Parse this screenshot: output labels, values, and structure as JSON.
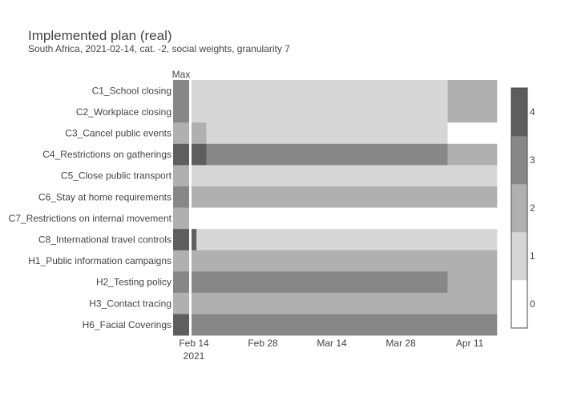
{
  "chart_data": {
    "type": "heatmap",
    "title": "Implemented plan (real)",
    "subtitle": "South Africa, 2021-02-14, cat. -2, social weights, granularity 7",
    "max_column_label": "Max",
    "rows": [
      "C1_School closing",
      "C2_Workplace closing",
      "C3_Cancel public events",
      "C4_Restrictions on gatherings",
      "C5_Close public transport",
      "C6_Stay at home requirements",
      "C7_Restrictions on internal movement",
      "C8_International travel controls",
      "H1_Public information campaigns",
      "H2_Testing policy",
      "H3_Contact tracing",
      "H6_Facial Coverings"
    ],
    "max_values": [
      3,
      3,
      2,
      4,
      2,
      3,
      2,
      4,
      2,
      3,
      2,
      4
    ],
    "x_start": "2021-02-14",
    "x_end": "2021-04-17",
    "x_ticks": [
      {
        "date": "2021-02-14",
        "label": "Feb 14",
        "sublabel": "2021"
      },
      {
        "date": "2021-02-28",
        "label": "Feb 28"
      },
      {
        "date": "2021-03-14",
        "label": "Mar 14"
      },
      {
        "date": "2021-03-28",
        "label": "Mar 28"
      },
      {
        "date": "2021-04-11",
        "label": "Apr 11"
      }
    ],
    "segments": [
      [
        {
          "start": "2021-02-14",
          "end": "2021-04-07",
          "value": 1
        },
        {
          "start": "2021-04-07",
          "end": "2021-04-17",
          "value": 2
        }
      ],
      [
        {
          "start": "2021-02-14",
          "end": "2021-04-07",
          "value": 1
        },
        {
          "start": "2021-04-07",
          "end": "2021-04-17",
          "value": 2
        }
      ],
      [
        {
          "start": "2021-02-14",
          "end": "2021-02-17",
          "value": 2
        },
        {
          "start": "2021-02-17",
          "end": "2021-04-07",
          "value": 1
        },
        {
          "start": "2021-04-07",
          "end": "2021-04-17",
          "value": 0
        }
      ],
      [
        {
          "start": "2021-02-14",
          "end": "2021-02-17",
          "value": 4
        },
        {
          "start": "2021-02-17",
          "end": "2021-04-07",
          "value": 3
        },
        {
          "start": "2021-04-07",
          "end": "2021-04-17",
          "value": 2
        }
      ],
      [
        {
          "start": "2021-02-14",
          "end": "2021-04-17",
          "value": 1
        }
      ],
      [
        {
          "start": "2021-02-14",
          "end": "2021-04-17",
          "value": 2
        }
      ],
      [
        {
          "start": "2021-02-14",
          "end": "2021-04-17",
          "value": 0
        }
      ],
      [
        {
          "start": "2021-02-14",
          "end": "2021-02-15",
          "value": 4
        },
        {
          "start": "2021-02-15",
          "end": "2021-04-17",
          "value": 1
        }
      ],
      [
        {
          "start": "2021-02-14",
          "end": "2021-04-17",
          "value": 2
        }
      ],
      [
        {
          "start": "2021-02-14",
          "end": "2021-04-07",
          "value": 3
        },
        {
          "start": "2021-04-07",
          "end": "2021-04-17",
          "value": 2
        }
      ],
      [
        {
          "start": "2021-02-14",
          "end": "2021-04-17",
          "value": 2
        }
      ],
      [
        {
          "start": "2021-02-14",
          "end": "2021-04-17",
          "value": 3
        }
      ]
    ],
    "colorscale": [
      {
        "value": 0,
        "color": "#ffffff"
      },
      {
        "value": 1,
        "color": "#d6d6d6"
      },
      {
        "value": 2,
        "color": "#b0b0b0"
      },
      {
        "value": 3,
        "color": "#878787"
      },
      {
        "value": 4,
        "color": "#5e5e5e"
      }
    ],
    "colorbar_ticks": [
      0,
      1,
      2,
      3,
      4
    ],
    "colorbar_range": [
      -0.5,
      4.5
    ]
  }
}
